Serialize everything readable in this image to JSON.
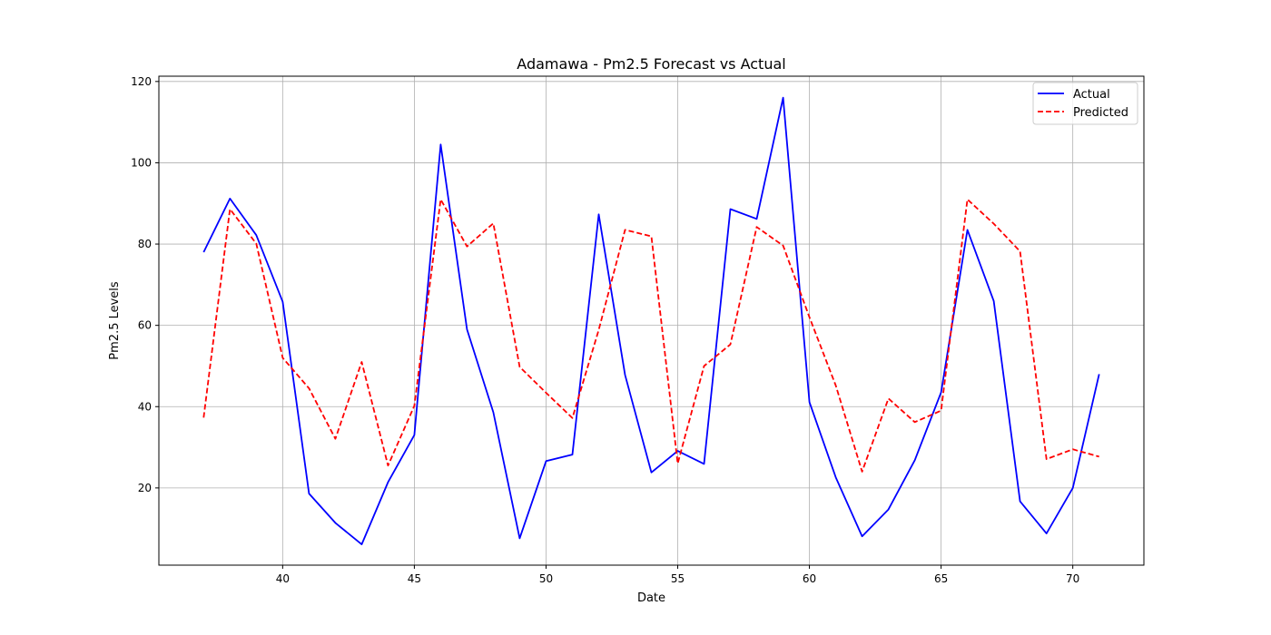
{
  "chart_data": {
    "type": "line",
    "title": "Adamawa - Pm2.5 Forecast vs Actual",
    "xlabel": "Date",
    "ylabel": "Pm2.5 Levels",
    "xlim": [
      35.3,
      72.7
    ],
    "ylim": [
      1.0,
      121.3
    ],
    "xticks": [
      40,
      45,
      50,
      55,
      60,
      65,
      70
    ],
    "yticks": [
      20,
      40,
      60,
      80,
      100,
      120
    ],
    "grid": true,
    "legend_position": "top-right",
    "x": [
      37,
      38,
      39,
      40,
      41,
      42,
      43,
      44,
      45,
      46,
      47,
      48,
      49,
      50,
      51,
      52,
      53,
      54,
      55,
      56,
      57,
      58,
      59,
      60,
      61,
      62,
      63,
      64,
      65,
      66,
      67,
      68,
      69,
      70,
      71
    ],
    "series": [
      {
        "name": "Actual",
        "color": "#0000ff",
        "style": "solid",
        "values": [
          78.0,
          91.2,
          82.2,
          65.8,
          18.6,
          11.4,
          6.1,
          21.4,
          33.0,
          104.5,
          59.0,
          38.6,
          7.6,
          26.6,
          28.2,
          87.3,
          47.8,
          23.8,
          29.1,
          25.9,
          88.6,
          86.2,
          116.0,
          41.1,
          22.6,
          8.1,
          14.7,
          26.8,
          43.5,
          83.5,
          66.0,
          16.7,
          8.8,
          20.0,
          48.0
        ]
      },
      {
        "name": "Predicted",
        "color": "#ff0000",
        "style": "dashed",
        "values": [
          37.3,
          88.6,
          80.1,
          52.0,
          44.5,
          32.1,
          51.0,
          25.5,
          40.2,
          91.0,
          79.4,
          85.1,
          49.8,
          43.4,
          37.2,
          58.9,
          83.5,
          81.9,
          26.0,
          50.0,
          55.3,
          84.2,
          79.6,
          62.0,
          45.2,
          24.0,
          42.0,
          36.2,
          39.0,
          91.0,
          85.0,
          78.2,
          27.1,
          29.5,
          27.7
        ]
      }
    ]
  }
}
